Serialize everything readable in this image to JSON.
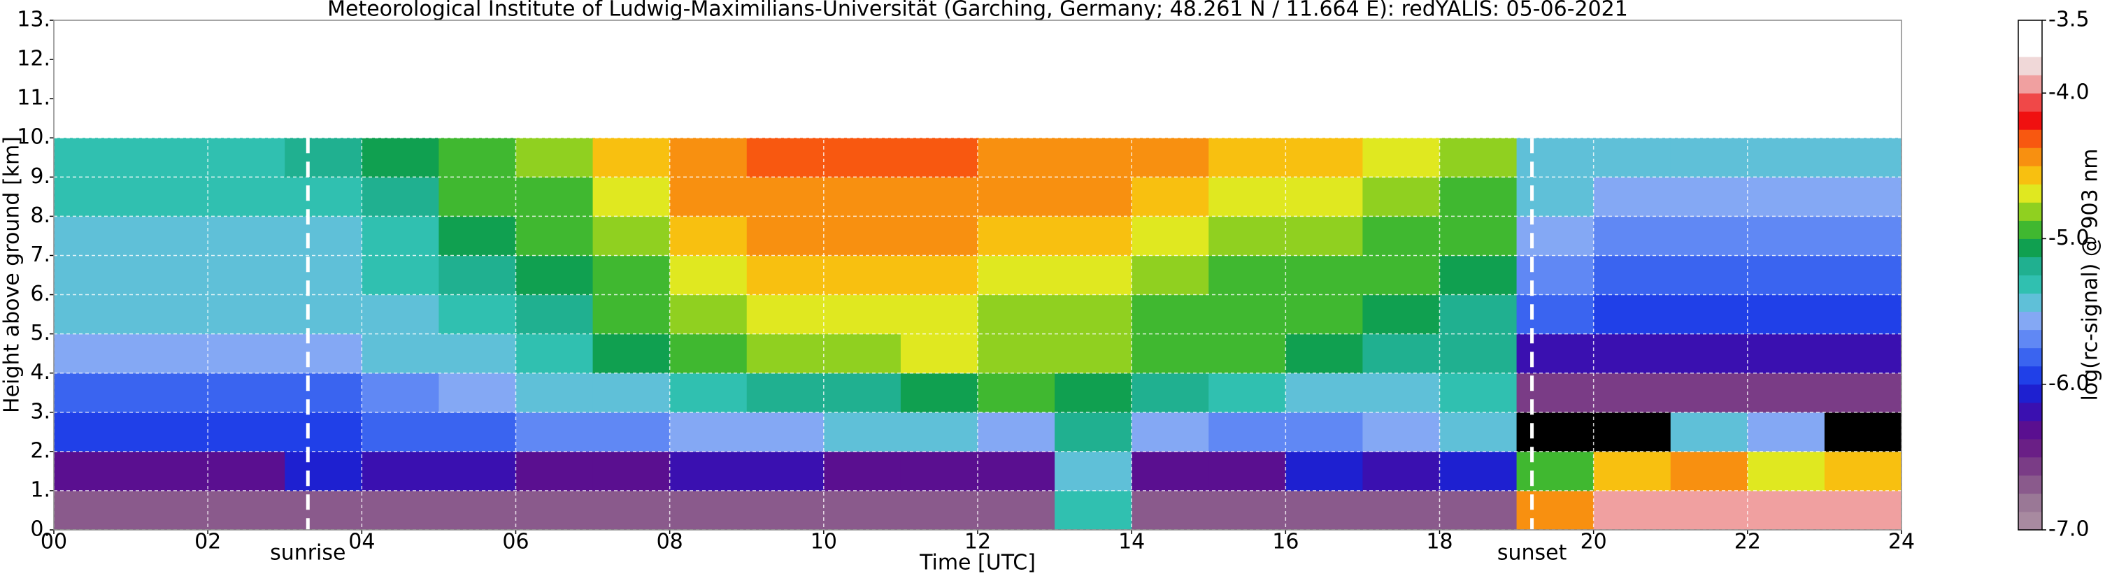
{
  "chart_data": {
    "type": "heatmap",
    "title": "Meteorological Institute of Ludwig-Maximilians-Universität (Garching, Germany; 48.261 N / 11.664 E):    redYALIS: 05-06-2021",
    "x_label": "Time [UTC]",
    "y_label": "Height above ground [km]",
    "colorbar_label": "log(rc-signal) @ 903 nm",
    "xbins": [
      0,
      1,
      2,
      3,
      4,
      5,
      6,
      7,
      8,
      9,
      10,
      11,
      12,
      13,
      14,
      15,
      16,
      17,
      18,
      19,
      20,
      21,
      22,
      23,
      24
    ],
    "ybins": [
      0,
      1,
      2,
      3,
      4,
      5,
      6,
      7,
      8,
      9,
      10
    ],
    "values": [
      [
        -6.7,
        -6.7,
        -6.7,
        -6.7,
        -6.7,
        -6.7,
        -6.7,
        -6.7,
        -6.7,
        -6.7,
        -6.7,
        -6.7,
        -6.7,
        -5.3,
        -6.7,
        -6.7,
        -6.7,
        -6.7,
        -6.7,
        -4.4,
        -3.9,
        -3.9,
        -3.9,
        -3.9
      ],
      [
        -6.3,
        -6.3,
        -6.3,
        -6.1,
        -6.2,
        -6.2,
        -6.3,
        -6.3,
        -6.2,
        -6.2,
        -6.3,
        -6.3,
        -6.3,
        -5.5,
        -6.3,
        -6.3,
        -6.1,
        -6.2,
        -6.1,
        -5.0,
        -4.6,
        -4.5,
        -4.7,
        -4.6
      ],
      [
        -6.0,
        -6.0,
        -5.9,
        -5.9,
        -5.8,
        -5.8,
        -5.7,
        -5.7,
        -5.6,
        -5.6,
        -5.5,
        -5.5,
        -5.6,
        -5.2,
        -5.6,
        -5.7,
        -5.7,
        -5.6,
        -5.5,
        null,
        null,
        -5.4,
        -5.6,
        null
      ],
      [
        -5.8,
        -5.8,
        -5.8,
        -5.8,
        -5.7,
        -5.6,
        -5.5,
        -5.4,
        -5.3,
        -5.2,
        -5.2,
        -5.1,
        -5.0,
        -5.1,
        -5.2,
        -5.3,
        -5.4,
        -5.4,
        -5.3,
        -6.6,
        -6.6,
        -6.6,
        -6.6,
        -6.6
      ],
      [
        -5.6,
        -5.6,
        -5.6,
        -5.6,
        -5.5,
        -5.4,
        -5.3,
        -5.1,
        -4.9,
        -4.8,
        -4.8,
        -4.7,
        -4.8,
        -4.8,
        -4.9,
        -5.0,
        -5.1,
        -5.2,
        -5.2,
        -6.2,
        -6.2,
        -6.2,
        -6.2,
        -6.2
      ],
      [
        -5.5,
        -5.5,
        -5.5,
        -5.5,
        -5.4,
        -5.3,
        -5.2,
        -5.0,
        -4.8,
        -4.7,
        -4.7,
        -4.7,
        -4.8,
        -4.8,
        -4.9,
        -5.0,
        -5.0,
        -5.1,
        -5.2,
        -5.8,
        -5.9,
        -5.9,
        -5.9,
        -5.9
      ],
      [
        -5.4,
        -5.4,
        -5.4,
        -5.4,
        -5.3,
        -5.2,
        -5.1,
        -4.9,
        -4.7,
        -4.6,
        -4.6,
        -4.6,
        -4.7,
        -4.7,
        -4.8,
        -4.9,
        -4.9,
        -5.0,
        -5.1,
        -5.7,
        -5.8,
        -5.8,
        -5.8,
        -5.8
      ],
      [
        -5.4,
        -5.4,
        -5.4,
        -5.4,
        -5.3,
        -5.1,
        -5.0,
        -4.8,
        -4.6,
        -4.5,
        -4.5,
        -4.5,
        -4.6,
        -4.6,
        -4.7,
        -4.8,
        -4.8,
        -4.9,
        -5.0,
        -5.6,
        -5.7,
        -5.7,
        -5.7,
        -5.7
      ],
      [
        -5.3,
        -5.3,
        -5.3,
        -5.3,
        -5.2,
        -5.0,
        -4.9,
        -4.7,
        -4.5,
        -4.4,
        -4.4,
        -4.4,
        -4.5,
        -4.5,
        -4.6,
        -4.7,
        -4.7,
        -4.8,
        -4.9,
        -5.5,
        -5.6,
        -5.6,
        -5.6,
        -5.6
      ],
      [
        -5.3,
        -5.3,
        -5.3,
        -5.2,
        -5.1,
        -4.9,
        -4.8,
        -4.6,
        -4.4,
        -4.3,
        -4.3,
        -4.3,
        -4.4,
        -4.5,
        -4.5,
        -4.6,
        -4.6,
        -4.7,
        -4.8,
        -5.5,
        -5.5,
        -5.5,
        -5.5,
        -5.5
      ]
    ],
    "nan_color": "#000000",
    "colormap": [
      "#a88aa0",
      "#9a7896",
      "#8a5a8c",
      "#7a3c86",
      "#6a1f86",
      "#5a0f90",
      "#3a10b0",
      "#1e20d0",
      "#2040e8",
      "#3a64f0",
      "#6088f4",
      "#84a8f4",
      "#5fc0d8",
      "#30c0b0",
      "#20b090",
      "#10a050",
      "#40b830",
      "#90d020",
      "#e0e820",
      "#f8c010",
      "#f89010",
      "#f85810",
      "#f01010",
      "#f04848",
      "#f0a0a0",
      "#f0d8d8",
      "#ffffff",
      "#ffffff"
    ],
    "xlim": [
      0,
      24
    ],
    "xticks": [
      {
        "value": 0,
        "label": "00"
      },
      {
        "value": 2,
        "label": "02"
      },
      {
        "value": 4,
        "label": "04"
      },
      {
        "value": 6,
        "label": "06"
      },
      {
        "value": 8,
        "label": "08"
      },
      10,
      12,
      14,
      16,
      18,
      20,
      22,
      24
    ],
    "ylim": [
      0,
      13
    ],
    "yticks": [
      {
        "value": 0,
        "label": "0."
      },
      {
        "value": 1,
        "label": "1."
      },
      {
        "value": 2,
        "label": "2."
      },
      {
        "value": 3,
        "label": "3."
      },
      {
        "value": 4,
        "label": "4."
      },
      {
        "value": 5,
        "label": "5."
      },
      {
        "value": 6,
        "label": "6."
      },
      {
        "value": 7,
        "label": "7."
      },
      {
        "value": 8,
        "label": "8."
      },
      {
        "value": 9,
        "label": "9."
      },
      {
        "value": 10,
        "label": "10."
      },
      {
        "value": 11,
        "label": "11."
      },
      {
        "value": 12,
        "label": "12."
      },
      {
        "value": 13,
        "label": "13."
      }
    ],
    "clim": [
      -7,
      -3.5
    ],
    "cticks": [
      -3.5,
      {
        "value": -4,
        "label": "-4.0"
      },
      {
        "value": -5,
        "label": "-5.0"
      },
      {
        "value": -6,
        "label": "-6.0"
      },
      {
        "value": -7,
        "label": "-7.0"
      }
    ],
    "grid": true,
    "annotations": [
      {
        "text": "sunrise",
        "x": 3.3,
        "ytop": 10
      },
      {
        "text": "sunset",
        "x": 19.2,
        "ytop": 10
      }
    ]
  }
}
